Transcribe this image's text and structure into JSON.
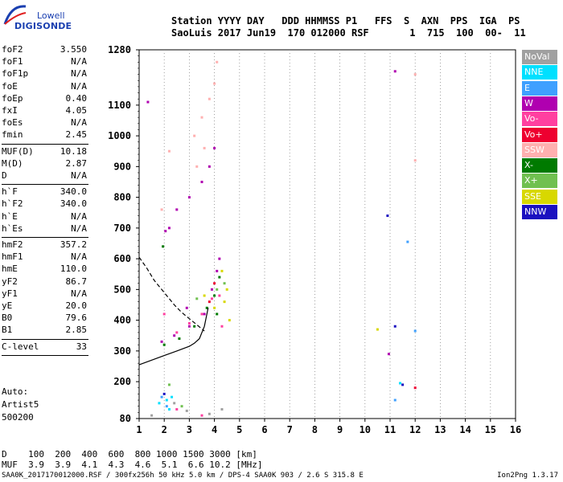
{
  "logo": {
    "line1": "Lowell",
    "line2": "DIGISONDE"
  },
  "header": {
    "row1": "Station YYYY DAY   DDD HHMMSS P1   FFS  S  AXN  PPS  IGA  PS",
    "row2": "SaoLuis 2017 Jun19  170 012000 RSF       1  715  100  00-  11"
  },
  "params": [
    {
      "label": "foF2",
      "value": "3.550"
    },
    {
      "label": "foF1",
      "value": "N/A"
    },
    {
      "label": "foF1p",
      "value": "N/A"
    },
    {
      "label": "foE",
      "value": "N/A"
    },
    {
      "label": "foEp",
      "value": "0.40"
    },
    {
      "label": "fxI",
      "value": "4.05"
    },
    {
      "label": "foEs",
      "value": "N/A"
    },
    {
      "label": "fmin",
      "value": "2.45"
    },
    {
      "label": "MUF(D)",
      "value": "10.18"
    },
    {
      "label": "M(D)",
      "value": "2.87"
    },
    {
      "label": "D",
      "value": "N/A"
    },
    {
      "label": "h`F",
      "value": "340.0"
    },
    {
      "label": "h`F2",
      "value": "340.0"
    },
    {
      "label": "h`E",
      "value": "N/A"
    },
    {
      "label": "h`Es",
      "value": "N/A"
    },
    {
      "label": "hmF2",
      "value": "357.2"
    },
    {
      "label": "hmF1",
      "value": "N/A"
    },
    {
      "label": "hmE",
      "value": "110.0"
    },
    {
      "label": "yF2",
      "value": "86.7"
    },
    {
      "label": "yF1",
      "value": "N/A"
    },
    {
      "label": "yE",
      "value": "20.0"
    },
    {
      "label": "B0",
      "value": "79.6"
    },
    {
      "label": "B1",
      "value": "2.85"
    },
    {
      "label": "C-level",
      "value": "33"
    }
  ],
  "auto": {
    "line1": "Auto:",
    "line2": "Artist5",
    "line3": "500200"
  },
  "legend": [
    {
      "label": "NoVal",
      "color": "#a0a0a0"
    },
    {
      "label": "NNE",
      "color": "#00e0ff"
    },
    {
      "label": "E",
      "color": "#3fa0ff"
    },
    {
      "label": "W",
      "color": "#b000b0"
    },
    {
      "label": "Vo-",
      "color": "#ff40a0"
    },
    {
      "label": "Vo+",
      "color": "#ee0030"
    },
    {
      "label": "SSW",
      "color": "#ffb0b0"
    },
    {
      "label": "X-",
      "color": "#007a00"
    },
    {
      "label": "X+",
      "color": "#70c050"
    },
    {
      "label": "SSE",
      "color": "#d8d800"
    },
    {
      "label": "NNW",
      "color": "#1a10c0"
    }
  ],
  "bottom": {
    "d_row": "D    100  200  400  600  800 1000 1500 3000 [km]",
    "muf_row": "MUF  3.9  3.9  4.1  4.3  4.6  5.1  6.6 10.2 [MHz]",
    "footer_left": "SAA0K_2017170012000.RSF / 300fx256h 50 kHz 5.0 km / DPS-4 SAA0K 903 / 2.6 S 315.8 E",
    "footer_right": "Ion2Png 1.3.17"
  },
  "chart_data": {
    "type": "scatter",
    "title": "",
    "xlabel": "",
    "ylabel": "",
    "xlim": [
      1,
      16
    ],
    "ylim": [
      80,
      1280
    ],
    "x_ticks": [
      1,
      2,
      3,
      4,
      5,
      6,
      7,
      8,
      9,
      10,
      11,
      12,
      13,
      14,
      15,
      16
    ],
    "y_ticks": [
      80,
      200,
      300,
      400,
      500,
      600,
      700,
      800,
      900,
      1000,
      1100,
      1280
    ],
    "grid": "vertical",
    "legend_position": "right",
    "series": [
      {
        "name": "W",
        "color": "#b000b0",
        "points": [
          [
            1.35,
            1110
          ],
          [
            2.05,
            690
          ],
          [
            2.2,
            700
          ],
          [
            2.5,
            760
          ],
          [
            3.0,
            800
          ],
          [
            3.5,
            850
          ],
          [
            3.8,
            900
          ],
          [
            4.0,
            960
          ],
          [
            1.9,
            330
          ],
          [
            2.4,
            350
          ],
          [
            3.0,
            380
          ],
          [
            3.6,
            420
          ],
          [
            3.9,
            500
          ],
          [
            4.1,
            560
          ],
          [
            4.2,
            600
          ],
          [
            2.9,
            440
          ],
          [
            10.95,
            290
          ],
          [
            11.2,
            1210
          ]
        ]
      },
      {
        "name": "SSW",
        "color": "#ffb0b0",
        "points": [
          [
            3.2,
            1000
          ],
          [
            3.5,
            1060
          ],
          [
            3.8,
            1120
          ],
          [
            4.0,
            1170
          ],
          [
            4.1,
            1240
          ],
          [
            3.3,
            900
          ],
          [
            3.6,
            960
          ],
          [
            1.9,
            760
          ],
          [
            2.2,
            950
          ],
          [
            12.0,
            920
          ],
          [
            12.0,
            1200
          ]
        ]
      },
      {
        "name": "X-",
        "color": "#007a00",
        "points": [
          [
            1.95,
            640
          ],
          [
            2.0,
            320
          ],
          [
            2.6,
            340
          ],
          [
            3.2,
            380
          ],
          [
            3.7,
            440
          ],
          [
            4.0,
            480
          ],
          [
            4.1,
            420
          ],
          [
            4.2,
            540
          ]
        ]
      },
      {
        "name": "Vo-",
        "color": "#ff40a0",
        "points": [
          [
            2.0,
            420
          ],
          [
            2.5,
            360
          ],
          [
            3.0,
            390
          ],
          [
            3.5,
            420
          ],
          [
            3.9,
            470
          ],
          [
            4.2,
            480
          ],
          [
            4.3,
            380
          ],
          [
            2.5,
            110
          ],
          [
            3.5,
            90
          ]
        ]
      },
      {
        "name": "SSE",
        "color": "#d8d800",
        "points": [
          [
            4.3,
            560
          ],
          [
            4.5,
            500
          ],
          [
            4.6,
            400
          ],
          [
            4.4,
            460
          ],
          [
            3.6,
            480
          ],
          [
            4.0,
            440
          ],
          [
            10.5,
            370
          ]
        ]
      },
      {
        "name": "X+",
        "color": "#70c050",
        "points": [
          [
            4.4,
            520
          ],
          [
            4.1,
            500
          ],
          [
            3.3,
            470
          ],
          [
            2.2,
            190
          ],
          [
            2.7,
            120
          ]
        ]
      },
      {
        "name": "Vo+",
        "color": "#ee0030",
        "points": [
          [
            4.0,
            520
          ],
          [
            3.8,
            460
          ],
          [
            12.0,
            180
          ]
        ]
      },
      {
        "name": "NNE",
        "color": "#00e0ff",
        "points": [
          [
            1.8,
            130
          ],
          [
            2.1,
            140
          ],
          [
            2.3,
            150
          ],
          [
            2.2,
            110
          ],
          [
            11.4,
            195
          ]
        ]
      },
      {
        "name": "E",
        "color": "#3fa0ff",
        "points": [
          [
            1.9,
            150
          ],
          [
            2.1,
            120
          ],
          [
            11.2,
            140
          ],
          [
            11.7,
            655
          ],
          [
            12.0,
            365
          ]
        ]
      },
      {
        "name": "NNW",
        "color": "#1a10c0",
        "points": [
          [
            2.0,
            160
          ],
          [
            10.9,
            740
          ],
          [
            11.2,
            380
          ],
          [
            11.5,
            190
          ]
        ]
      },
      {
        "name": "NoVal",
        "color": "#a0a0a0",
        "points": [
          [
            1.5,
            90
          ],
          [
            2.4,
            130
          ],
          [
            2.9,
            105
          ],
          [
            3.8,
            95
          ],
          [
            4.3,
            110
          ]
        ]
      }
    ],
    "curves": [
      {
        "name": "virtual height trace (solid)",
        "style": "solid",
        "points": [
          [
            1.0,
            255
          ],
          [
            1.5,
            270
          ],
          [
            2.0,
            285
          ],
          [
            2.5,
            300
          ],
          [
            3.0,
            315
          ],
          [
            3.2,
            325
          ],
          [
            3.4,
            340
          ],
          [
            3.6,
            380
          ],
          [
            3.75,
            440
          ]
        ]
      },
      {
        "name": "true height profile (dashed)",
        "style": "dashed",
        "points": [
          [
            1.0,
            605
          ],
          [
            1.3,
            570
          ],
          [
            1.6,
            530
          ],
          [
            2.0,
            490
          ],
          [
            2.4,
            450
          ],
          [
            2.7,
            425
          ],
          [
            3.0,
            405
          ],
          [
            3.3,
            385
          ],
          [
            3.6,
            365
          ]
        ]
      }
    ]
  }
}
